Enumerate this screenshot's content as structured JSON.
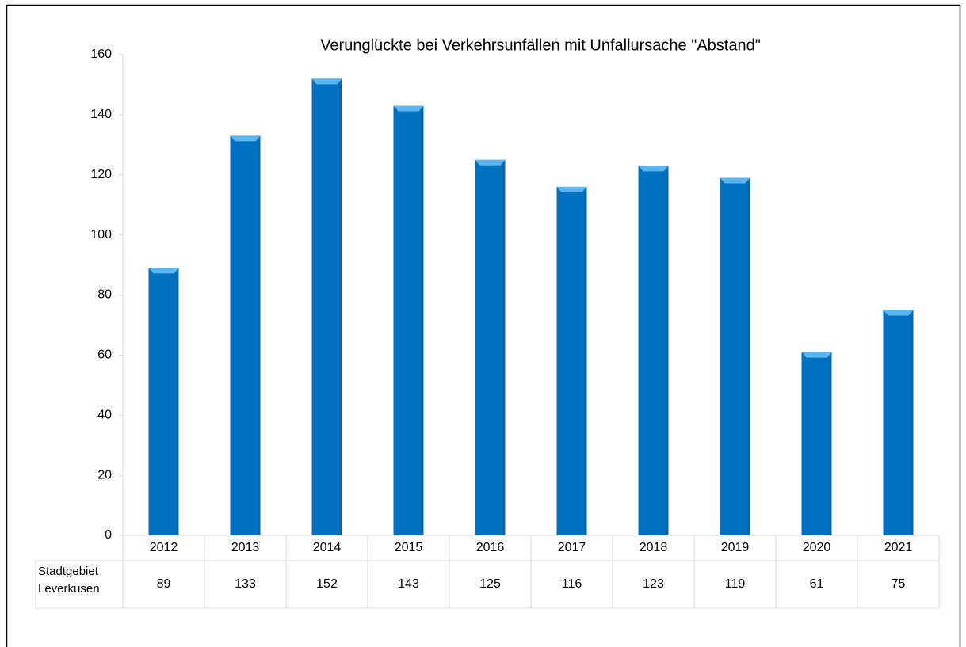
{
  "chart_data": {
    "type": "bar",
    "title": "Verunglückte bei Verkehrsunfällen mit Unfallursache \"Abstand\"",
    "categories": [
      "2012",
      "2013",
      "2014",
      "2015",
      "2016",
      "2017",
      "2018",
      "2019",
      "2020",
      "2021"
    ],
    "series": [
      {
        "name": "Stadtgebiet Leverkusen",
        "color": "#0070c0",
        "values": [
          89,
          133,
          152,
          143,
          125,
          116,
          123,
          119,
          61,
          75
        ]
      }
    ],
    "ylim": [
      0,
      160
    ],
    "yticks": [
      0,
      20,
      40,
      60,
      80,
      100,
      120,
      140,
      160
    ],
    "grid": false
  }
}
